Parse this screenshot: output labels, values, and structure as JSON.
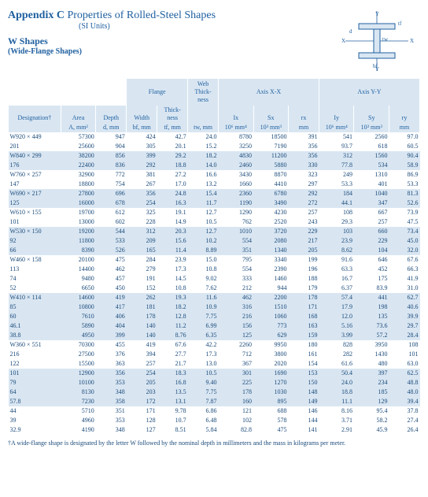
{
  "title": {
    "appendix": "Appendix C",
    "main": "Properties of Rolled-Steel Shapes",
    "units": "(SI Units)",
    "shapes": "W Shapes",
    "sub": "(Wide-Flange Shapes)"
  },
  "diagram_labels": {
    "Y": "Y",
    "X": "X",
    "d": "d",
    "tf": "tf",
    "tw": "tw",
    "bf": "bf"
  },
  "colors": {
    "primary": "#1a4a7a",
    "light": "#d9e6f2",
    "bg": "#ffffff"
  },
  "columns": {
    "groups": [
      {
        "label": "",
        "span": 3
      },
      {
        "label": "Flange",
        "span": 2
      },
      {
        "label": "Web\nThick-\nness",
        "span": 1
      },
      {
        "label": "Axis X-X",
        "span": 3
      },
      {
        "label": "Axis Y-Y",
        "span": 3
      }
    ],
    "headers": [
      {
        "l1": "Designation†",
        "l2": ""
      },
      {
        "l1": "Area",
        "l2": "A, mm²"
      },
      {
        "l1": "Depth",
        "l2": "d, mm"
      },
      {
        "l1": "Width",
        "l2": "bf, mm"
      },
      {
        "l1": "Thick-\nness",
        "l2": "tf, mm"
      },
      {
        "l1": "",
        "l2": "tw, mm"
      },
      {
        "l1": "Ix",
        "l2": "10⁶ mm⁴"
      },
      {
        "l1": "Sx",
        "l2": "10³ mm³"
      },
      {
        "l1": "rx",
        "l2": "mm"
      },
      {
        "l1": "Iy",
        "l2": "10⁶ mm⁴"
      },
      {
        "l1": "Sy",
        "l2": "10³ mm³"
      },
      {
        "l1": "ry",
        "l2": "mm"
      }
    ]
  },
  "groupsData": [
    {
      "alt": false,
      "rows": [
        [
          "W920 × 449",
          "57300",
          "947",
          "424",
          "42.7",
          "24.0",
          "8780",
          "18500",
          "391",
          "541",
          "2560",
          "97.0"
        ],
        [
          "201",
          "25600",
          "904",
          "305",
          "20.1",
          "15.2",
          "3250",
          "7190",
          "356",
          "93.7",
          "618",
          "60.5"
        ]
      ]
    },
    {
      "alt": true,
      "rows": [
        [
          "W840 × 299",
          "38200",
          "856",
          "399",
          "29.2",
          "18.2",
          "4830",
          "11200",
          "356",
          "312",
          "1560",
          "90.4"
        ],
        [
          "176",
          "22400",
          "836",
          "292",
          "18.8",
          "14.0",
          "2460",
          "5880",
          "330",
          "77.8",
          "534",
          "58.9"
        ]
      ]
    },
    {
      "alt": false,
      "rows": [
        [
          "W760 × 257",
          "32900",
          "772",
          "381",
          "27.2",
          "16.6",
          "3430",
          "8870",
          "323",
          "249",
          "1310",
          "86.9"
        ],
        [
          "147",
          "18800",
          "754",
          "267",
          "17.0",
          "13.2",
          "1660",
          "4410",
          "297",
          "53.3",
          "401",
          "53.3"
        ]
      ]
    },
    {
      "alt": true,
      "rows": [
        [
          "W690 × 217",
          "27800",
          "696",
          "356",
          "24.8",
          "15.4",
          "2360",
          "6780",
          "292",
          "184",
          "1040",
          "81.3"
        ],
        [
          "125",
          "16000",
          "678",
          "254",
          "16.3",
          "11.7",
          "1190",
          "3490",
          "272",
          "44.1",
          "347",
          "52.6"
        ]
      ]
    },
    {
      "alt": false,
      "rows": [
        [
          "W610 × 155",
          "19700",
          "612",
          "325",
          "19.1",
          "12.7",
          "1290",
          "4230",
          "257",
          "108",
          "667",
          "73.9"
        ],
        [
          "101",
          "13000",
          "602",
          "228",
          "14.9",
          "10.5",
          "762",
          "2520",
          "243",
          "29.3",
          "257",
          "47.5"
        ]
      ]
    },
    {
      "alt": true,
      "rows": [
        [
          "W530 × 150",
          "19200",
          "544",
          "312",
          "20.3",
          "12.7",
          "1010",
          "3720",
          "229",
          "103",
          "660",
          "73.4"
        ],
        [
          "92",
          "11800",
          "533",
          "209",
          "15.6",
          "10.2",
          "554",
          "2080",
          "217",
          "23.9",
          "229",
          "45.0"
        ],
        [
          "66",
          "8390",
          "526",
          "165",
          "11.4",
          "8.89",
          "351",
          "1340",
          "205",
          "8.62",
          "104",
          "32.0"
        ]
      ]
    },
    {
      "alt": false,
      "rows": [
        [
          "W460 × 158",
          "20100",
          "475",
          "284",
          "23.9",
          "15.0",
          "795",
          "3340",
          "199",
          "91.6",
          "646",
          "67.6"
        ],
        [
          "113",
          "14400",
          "462",
          "279",
          "17.3",
          "10.8",
          "554",
          "2390",
          "196",
          "63.3",
          "452",
          "66.3"
        ],
        [
          "74",
          "9480",
          "457",
          "191",
          "14.5",
          "9.02",
          "333",
          "1460",
          "188",
          "16.7",
          "175",
          "41.9"
        ],
        [
          "52",
          "6650",
          "450",
          "152",
          "10.8",
          "7.62",
          "212",
          "944",
          "179",
          "6.37",
          "83.9",
          "31.0"
        ]
      ]
    },
    {
      "alt": true,
      "rows": [
        [
          "W410 × 114",
          "14600",
          "419",
          "262",
          "19.3",
          "11.6",
          "462",
          "2200",
          "178",
          "57.4",
          "441",
          "62.7"
        ],
        [
          "85",
          "10800",
          "417",
          "181",
          "18.2",
          "10.9",
          "316",
          "1510",
          "171",
          "17.9",
          "198",
          "40.6"
        ],
        [
          "60",
          "7610",
          "406",
          "178",
          "12.8",
          "7.75",
          "216",
          "1060",
          "168",
          "12.0",
          "135",
          "39.9"
        ],
        [
          "46.1",
          "5890",
          "404",
          "140",
          "11.2",
          "6.99",
          "156",
          "773",
          "163",
          "5.16",
          "73.6",
          "29.7"
        ],
        [
          "38.8",
          "4950",
          "399",
          "140",
          "8.76",
          "6.35",
          "125",
          "629",
          "159",
          "3.99",
          "57.2",
          "28.4"
        ]
      ]
    },
    {
      "alt": false,
      "rows": [
        [
          "W360 × 551",
          "70300",
          "455",
          "419",
          "67.6",
          "42.2",
          "2260",
          "9950",
          "180",
          "828",
          "3950",
          "108"
        ],
        [
          "216",
          "27500",
          "376",
          "394",
          "27.7",
          "17.3",
          "712",
          "3800",
          "161",
          "282",
          "1430",
          "101"
        ],
        [
          "122",
          "15500",
          "363",
          "257",
          "21.7",
          "13.0",
          "367",
          "2020",
          "154",
          "61.6",
          "480",
          "63.0"
        ]
      ]
    },
    {
      "alt": true,
      "rows": [
        [
          "101",
          "12900",
          "356",
          "254",
          "18.3",
          "10.5",
          "301",
          "1690",
          "153",
          "50.4",
          "397",
          "62.5"
        ],
        [
          "79",
          "10100",
          "353",
          "205",
          "16.8",
          "9.40",
          "225",
          "1270",
          "150",
          "24.0",
          "234",
          "48.8"
        ],
        [
          "64",
          "8130",
          "348",
          "203",
          "13.5",
          "7.75",
          "178",
          "1030",
          "148",
          "18.8",
          "185",
          "48.0"
        ],
        [
          "57.8",
          "7230",
          "358",
          "172",
          "13.1",
          "7.87",
          "160",
          "895",
          "149",
          "11.1",
          "129",
          "39.4"
        ]
      ]
    },
    {
      "alt": false,
      "rows": [
        [
          "44",
          "5710",
          "351",
          "171",
          "9.78",
          "6.86",
          "121",
          "688",
          "146",
          "8.16",
          "95.4",
          "37.8"
        ],
        [
          "39",
          "4960",
          "353",
          "128",
          "10.7",
          "6.48",
          "102",
          "578",
          "144",
          "3.71",
          "58.2",
          "27.4"
        ],
        [
          "32.9",
          "4190",
          "348",
          "127",
          "8.51",
          "5.84",
          "82.8",
          "475",
          "141",
          "2.91",
          "45.9",
          "26.4"
        ]
      ]
    }
  ],
  "footnote": "†A wide-flange shape is designated by the letter W followed by the nominal depth in millimeters and the mass in kilograms per meter."
}
